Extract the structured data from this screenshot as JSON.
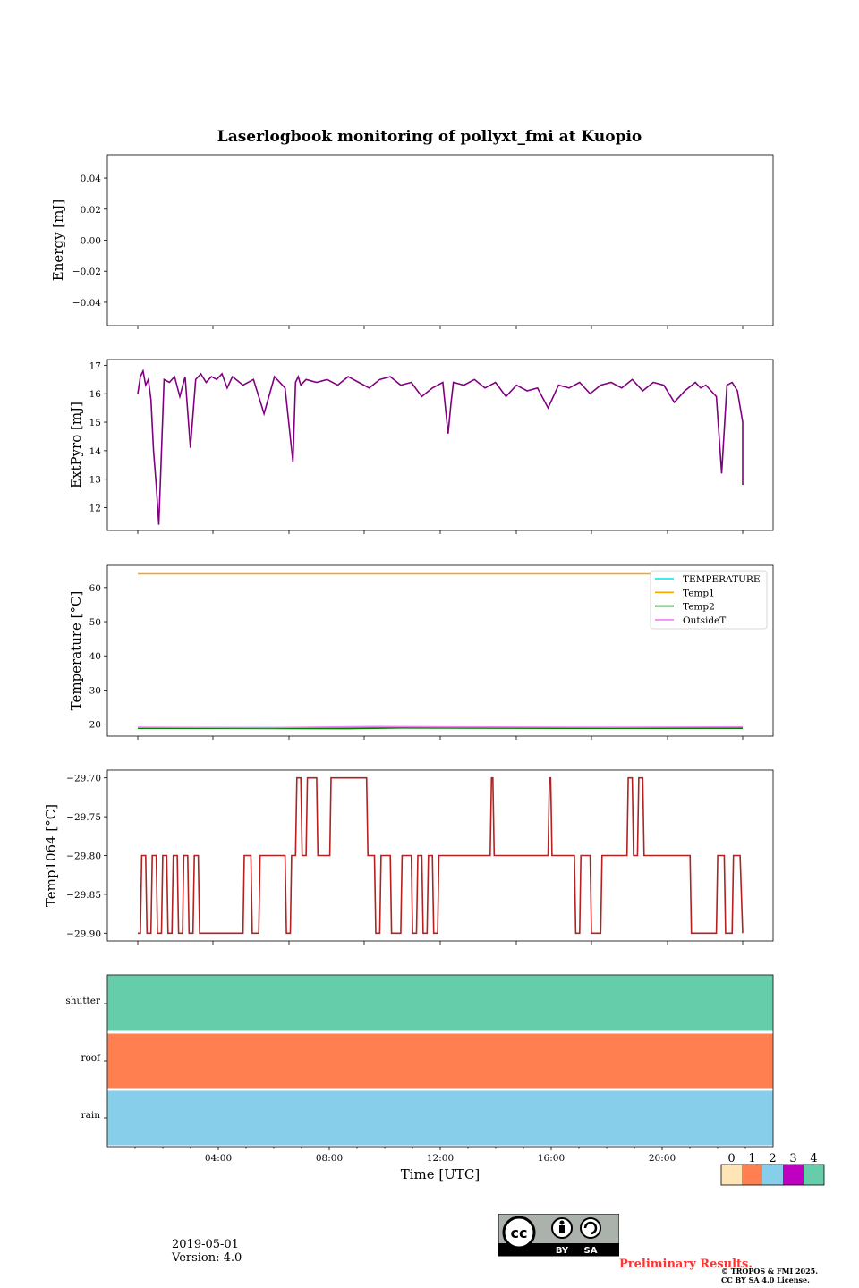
{
  "figure": {
    "title": "Laserlogbook monitoring of pollyxt_fmi at Kuopio",
    "date": "2019-05-01",
    "version": "Version: 4.0",
    "preliminary": "Preliminary Results.",
    "copyright_line1": "© TROPOS & FMI 2025.",
    "copyright_line2": "CC BY SA 4.0 License.",
    "license_badge": [
      "BY",
      "SA"
    ]
  },
  "chart_data": [
    {
      "id": "energy",
      "type": "line",
      "ylabel": "Energy [mJ]",
      "ylim": [
        -0.055,
        0.055
      ],
      "yticks": [
        0.04,
        0.02,
        0.0,
        -0.02,
        -0.04
      ],
      "ytick_labels": [
        "0.04",
        "0.02",
        "0.00",
        "−0.02",
        "−0.04"
      ],
      "series": []
    },
    {
      "id": "extpyro",
      "type": "line",
      "ylabel": "ExtPyro [mJ]",
      "ylim": [
        11.2,
        17.2
      ],
      "yticks": [
        17,
        16,
        15,
        14,
        13,
        12
      ],
      "ytick_labels": [
        "17",
        "16",
        "15",
        "14",
        "13",
        "12"
      ],
      "series": [
        {
          "name": "ExtPyro",
          "color": "#800080",
          "x": [
            0.0,
            0.1,
            0.2,
            0.3,
            0.4,
            0.5,
            0.6,
            0.7,
            0.8,
            1.0,
            1.2,
            1.4,
            1.6,
            1.8,
            2.0,
            2.2,
            2.4,
            2.6,
            2.8,
            3.0,
            3.2,
            3.4,
            3.6,
            4.0,
            4.4,
            4.8,
            5.2,
            5.6,
            5.9,
            6.0,
            6.1,
            6.2,
            6.4,
            6.8,
            7.2,
            7.6,
            8.0,
            8.4,
            8.8,
            9.2,
            9.6,
            10.0,
            10.4,
            10.8,
            11.2,
            11.6,
            11.8,
            11.9,
            12.0,
            12.4,
            12.8,
            13.2,
            13.6,
            14.0,
            14.4,
            14.8,
            15.2,
            15.6,
            16.0,
            16.4,
            16.8,
            17.2,
            17.6,
            18.0,
            18.4,
            18.8,
            19.2,
            19.6,
            20.0,
            20.4,
            20.8,
            21.2,
            21.4,
            21.6,
            21.8,
            22.0,
            22.2,
            22.4,
            22.6,
            22.8,
            23.0,
            23.0
          ],
          "y": [
            16.0,
            16.6,
            16.8,
            16.3,
            16.5,
            15.8,
            14.0,
            12.8,
            11.4,
            16.5,
            16.4,
            16.6,
            15.9,
            16.6,
            14.1,
            16.5,
            16.7,
            16.4,
            16.6,
            16.5,
            16.7,
            16.2,
            16.6,
            16.3,
            16.5,
            15.3,
            16.6,
            16.2,
            13.6,
            16.4,
            16.6,
            16.3,
            16.5,
            16.4,
            16.5,
            16.3,
            16.6,
            16.4,
            16.2,
            16.5,
            16.6,
            16.3,
            16.4,
            15.9,
            16.2,
            16.4,
            14.6,
            15.6,
            16.4,
            16.3,
            16.5,
            16.2,
            16.4,
            15.9,
            16.3,
            16.1,
            16.2,
            15.5,
            16.3,
            16.2,
            16.4,
            16.0,
            16.3,
            16.4,
            16.2,
            16.5,
            16.1,
            16.4,
            16.3,
            15.7,
            16.1,
            16.4,
            16.2,
            16.3,
            16.1,
            15.9,
            13.2,
            16.3,
            16.4,
            16.1,
            15.0,
            12.8
          ]
        }
      ]
    },
    {
      "id": "temperature",
      "type": "line",
      "ylabel": "Temperature [°C]",
      "ylim": [
        16.5,
        66.5
      ],
      "yticks": [
        60,
        50,
        40,
        30,
        20
      ],
      "ytick_labels": [
        "60",
        "50",
        "40",
        "30",
        "20"
      ],
      "legend_position": "top-right",
      "series": [
        {
          "name": "TEMPERATURE",
          "color": "#00e5e5",
          "x": [
            0.0,
            23.0
          ],
          "y": [
            19.0,
            19.0
          ]
        },
        {
          "name": "Temp1",
          "color": "#ffa500",
          "x": [
            0.0,
            23.0
          ],
          "y": [
            64.0,
            64.0
          ]
        },
        {
          "name": "Temp2",
          "color": "#008000",
          "x": [
            0.0,
            8.0,
            10.0,
            16.0,
            23.0
          ],
          "y": [
            18.8,
            18.7,
            18.9,
            18.8,
            18.8
          ]
        },
        {
          "name": "OutsideT",
          "color": "#ee82ee",
          "x": [
            0.0,
            5.0,
            9.0,
            12.0,
            18.0,
            23.0
          ],
          "y": [
            19.1,
            19.0,
            19.3,
            19.2,
            19.1,
            19.2
          ]
        }
      ]
    },
    {
      "id": "temp1064",
      "type": "line",
      "ylabel": "Temp1064 [°C]",
      "ylim": [
        -29.91,
        -29.69
      ],
      "yticks": [
        -29.7,
        -29.75,
        -29.8,
        -29.85,
        -29.9
      ],
      "ytick_labels": [
        "−29.70",
        "−29.75",
        "−29.80",
        "−29.85",
        "−29.90"
      ],
      "series": [
        {
          "name": "Temp1064",
          "color": "#b22222",
          "x": [
            0.0,
            0.1,
            0.15,
            0.3,
            0.35,
            0.5,
            0.55,
            0.7,
            0.75,
            0.9,
            0.95,
            1.1,
            1.15,
            1.3,
            1.35,
            1.5,
            1.55,
            1.7,
            1.75,
            1.9,
            1.95,
            2.1,
            2.15,
            2.3,
            2.35,
            4.0,
            4.05,
            4.3,
            4.35,
            4.6,
            4.65,
            5.6,
            5.65,
            5.8,
            5.85,
            6.0,
            6.05,
            6.2,
            6.25,
            6.4,
            6.45,
            6.8,
            6.85,
            7.3,
            7.35,
            7.5,
            7.55,
            8.7,
            8.75,
            9.0,
            9.05,
            9.2,
            9.25,
            9.6,
            9.65,
            10.0,
            10.05,
            10.4,
            10.45,
            10.6,
            10.65,
            10.8,
            10.85,
            11.0,
            11.05,
            11.2,
            11.25,
            11.4,
            11.45,
            13.4,
            13.45,
            13.5,
            13.55,
            15.6,
            15.65,
            15.7,
            15.75,
            16.6,
            16.65,
            16.8,
            16.85,
            17.2,
            17.25,
            17.6,
            17.65,
            18.6,
            18.65,
            18.8,
            18.85,
            19.0,
            19.05,
            19.2,
            19.25,
            21.0,
            21.05,
            22.0,
            22.05,
            22.3,
            22.35,
            22.6,
            22.65,
            22.9,
            23.0
          ],
          "y": [
            -29.9,
            -29.9,
            -29.8,
            -29.8,
            -29.9,
            -29.9,
            -29.8,
            -29.8,
            -29.9,
            -29.9,
            -29.8,
            -29.8,
            -29.9,
            -29.9,
            -29.8,
            -29.8,
            -29.9,
            -29.9,
            -29.8,
            -29.8,
            -29.9,
            -29.9,
            -29.8,
            -29.8,
            -29.9,
            -29.9,
            -29.8,
            -29.8,
            -29.9,
            -29.9,
            -29.8,
            -29.8,
            -29.9,
            -29.9,
            -29.8,
            -29.8,
            -29.7,
            -29.7,
            -29.8,
            -29.8,
            -29.7,
            -29.7,
            -29.8,
            -29.8,
            -29.7,
            -29.7,
            -29.7,
            -29.7,
            -29.8,
            -29.8,
            -29.9,
            -29.9,
            -29.8,
            -29.8,
            -29.9,
            -29.9,
            -29.8,
            -29.8,
            -29.9,
            -29.9,
            -29.8,
            -29.8,
            -29.9,
            -29.9,
            -29.8,
            -29.8,
            -29.9,
            -29.9,
            -29.8,
            -29.8,
            -29.7,
            -29.7,
            -29.8,
            -29.8,
            -29.7,
            -29.7,
            -29.8,
            -29.8,
            -29.9,
            -29.9,
            -29.8,
            -29.8,
            -29.9,
            -29.9,
            -29.8,
            -29.8,
            -29.7,
            -29.7,
            -29.8,
            -29.8,
            -29.7,
            -29.7,
            -29.8,
            -29.8,
            -29.9,
            -29.9,
            -29.8,
            -29.8,
            -29.9,
            -29.9,
            -29.8,
            -29.8,
            -29.9
          ]
        }
      ]
    },
    {
      "id": "status",
      "type": "heatmap",
      "rows": [
        "shutter",
        "roof",
        "rain"
      ],
      "row_values": [
        4,
        1,
        2
      ],
      "xlabel": "Time [UTC]",
      "xlim_hours": [
        0,
        24
      ],
      "xticks_hours": [
        4,
        8,
        12,
        16,
        20
      ],
      "xtick_labels": [
        "04:00",
        "08:00",
        "12:00",
        "16:00",
        "20:00"
      ]
    }
  ],
  "colorbar": {
    "labels": [
      "0",
      "1",
      "2",
      "3",
      "4"
    ],
    "colors": [
      "#ffe4b5",
      "#ff7f50",
      "#87ceeb",
      "#c000c0",
      "#66cdaa"
    ]
  }
}
